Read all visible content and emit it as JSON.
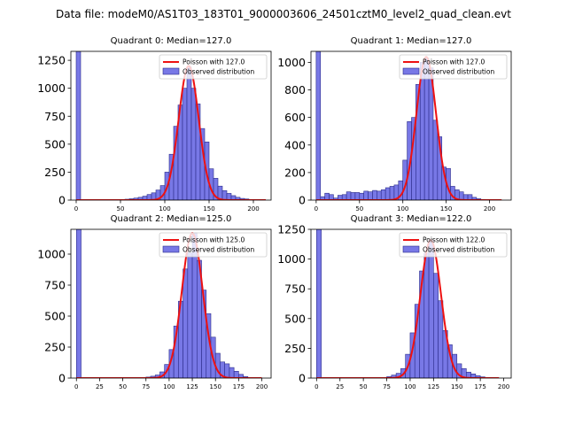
{
  "suptitle": "Data file: modeM0/AS1T03_183T01_9000003606_24501cztM0_level2_quad_clean.evt",
  "colors": {
    "bar_fill": "#7878e6",
    "bar_edge": "#2b2b8a",
    "fit_line": "#ee1111"
  },
  "chart_data": [
    {
      "type": "bar",
      "title": "Quadrant 0: Median=127.0",
      "median": 127.0,
      "xlim": [
        -6,
        220
      ],
      "ylim": [
        0,
        1330
      ],
      "xticks": [
        0,
        50,
        100,
        150,
        200
      ],
      "yticks": [
        0,
        250,
        500,
        750,
        1000,
        1250
      ],
      "bin_width": 5,
      "bins": [
        {
          "x": 0,
          "y": 1330
        },
        {
          "x": 55,
          "y": 8
        },
        {
          "x": 60,
          "y": 12
        },
        {
          "x": 65,
          "y": 18
        },
        {
          "x": 70,
          "y": 25
        },
        {
          "x": 75,
          "y": 35
        },
        {
          "x": 80,
          "y": 50
        },
        {
          "x": 85,
          "y": 65
        },
        {
          "x": 90,
          "y": 90
        },
        {
          "x": 95,
          "y": 130
        },
        {
          "x": 100,
          "y": 250
        },
        {
          "x": 105,
          "y": 410
        },
        {
          "x": 110,
          "y": 660
        },
        {
          "x": 115,
          "y": 850
        },
        {
          "x": 120,
          "y": 1000
        },
        {
          "x": 125,
          "y": 1190
        },
        {
          "x": 130,
          "y": 1000
        },
        {
          "x": 135,
          "y": 860
        },
        {
          "x": 140,
          "y": 640
        },
        {
          "x": 145,
          "y": 520
        },
        {
          "x": 150,
          "y": 280
        },
        {
          "x": 155,
          "y": 195
        },
        {
          "x": 160,
          "y": 125
        },
        {
          "x": 165,
          "y": 85
        },
        {
          "x": 170,
          "y": 60
        },
        {
          "x": 175,
          "y": 40
        },
        {
          "x": 180,
          "y": 25
        },
        {
          "x": 185,
          "y": 15
        },
        {
          "x": 190,
          "y": 10
        },
        {
          "x": 195,
          "y": 5
        },
        {
          "x": 200,
          "y": 3
        }
      ],
      "fit": {
        "mean": 127.0,
        "peak": 1200,
        "sigma": 11.3,
        "xmax": 214
      },
      "legend": {
        "line": "Poisson with 127.0",
        "bars": "Observed distribution"
      }
    },
    {
      "type": "bar",
      "title": "Quadrant 1: Median=127.0",
      "median": 127.0,
      "xlim": [
        -6,
        225
      ],
      "ylim": [
        0,
        1080
      ],
      "xticks": [
        0,
        50,
        100,
        150,
        200
      ],
      "yticks": [
        0,
        200,
        400,
        600,
        800,
        1000
      ],
      "bin_width": 5,
      "bins": [
        {
          "x": 0,
          "y": 1080
        },
        {
          "x": 5,
          "y": 25
        },
        {
          "x": 10,
          "y": 50
        },
        {
          "x": 15,
          "y": 40
        },
        {
          "x": 20,
          "y": 15
        },
        {
          "x": 25,
          "y": 35
        },
        {
          "x": 30,
          "y": 40
        },
        {
          "x": 35,
          "y": 60
        },
        {
          "x": 40,
          "y": 55
        },
        {
          "x": 45,
          "y": 55
        },
        {
          "x": 50,
          "y": 50
        },
        {
          "x": 55,
          "y": 65
        },
        {
          "x": 60,
          "y": 60
        },
        {
          "x": 65,
          "y": 70
        },
        {
          "x": 70,
          "y": 65
        },
        {
          "x": 75,
          "y": 75
        },
        {
          "x": 80,
          "y": 90
        },
        {
          "x": 85,
          "y": 100
        },
        {
          "x": 90,
          "y": 110
        },
        {
          "x": 95,
          "y": 140
        },
        {
          "x": 100,
          "y": 290
        },
        {
          "x": 105,
          "y": 570
        },
        {
          "x": 110,
          "y": 600
        },
        {
          "x": 115,
          "y": 840
        },
        {
          "x": 120,
          "y": 1000
        },
        {
          "x": 125,
          "y": 1030
        },
        {
          "x": 130,
          "y": 960
        },
        {
          "x": 135,
          "y": 580
        },
        {
          "x": 140,
          "y": 460
        },
        {
          "x": 145,
          "y": 240
        },
        {
          "x": 150,
          "y": 230
        },
        {
          "x": 155,
          "y": 100
        },
        {
          "x": 160,
          "y": 75
        },
        {
          "x": 165,
          "y": 60
        },
        {
          "x": 170,
          "y": 40
        },
        {
          "x": 175,
          "y": 40
        },
        {
          "x": 180,
          "y": 20
        },
        {
          "x": 185,
          "y": 10
        },
        {
          "x": 190,
          "y": 5
        }
      ],
      "fit": {
        "mean": 127.0,
        "peak": 1040,
        "sigma": 11.3,
        "xmax": 214
      },
      "legend": {
        "line": "Poisson with 127.0",
        "bars": "Observed distribution"
      }
    },
    {
      "type": "bar",
      "title": "Quadrant 2: Median=125.0",
      "median": 125.0,
      "xlim": [
        -6,
        210
      ],
      "ylim": [
        0,
        1200
      ],
      "xticks": [
        0,
        25,
        50,
        75,
        100,
        125,
        150,
        175,
        200
      ],
      "yticks": [
        0,
        250,
        500,
        750,
        1000
      ],
      "bin_width": 5,
      "bins": [
        {
          "x": 0,
          "y": 1200
        },
        {
          "x": 70,
          "y": 4
        },
        {
          "x": 75,
          "y": 8
        },
        {
          "x": 80,
          "y": 15
        },
        {
          "x": 85,
          "y": 25
        },
        {
          "x": 90,
          "y": 50
        },
        {
          "x": 95,
          "y": 110
        },
        {
          "x": 100,
          "y": 230
        },
        {
          "x": 105,
          "y": 420
        },
        {
          "x": 110,
          "y": 620
        },
        {
          "x": 115,
          "y": 880
        },
        {
          "x": 120,
          "y": 1010
        },
        {
          "x": 125,
          "y": 1170
        },
        {
          "x": 130,
          "y": 950
        },
        {
          "x": 135,
          "y": 710
        },
        {
          "x": 140,
          "y": 520
        },
        {
          "x": 145,
          "y": 330
        },
        {
          "x": 150,
          "y": 200
        },
        {
          "x": 155,
          "y": 130
        },
        {
          "x": 160,
          "y": 115
        },
        {
          "x": 165,
          "y": 85
        },
        {
          "x": 170,
          "y": 55
        },
        {
          "x": 175,
          "y": 30
        },
        {
          "x": 180,
          "y": 12
        },
        {
          "x": 185,
          "y": 5
        }
      ],
      "fit": {
        "mean": 125.0,
        "peak": 1170,
        "sigma": 11.2,
        "xmax": 200
      },
      "legend": {
        "line": "Poisson with 125.0",
        "bars": "Observed distribution"
      }
    },
    {
      "type": "bar",
      "title": "Quadrant 3: Median=122.0",
      "median": 122.0,
      "xlim": [
        -6,
        208
      ],
      "ylim": [
        0,
        1250
      ],
      "xticks": [
        0,
        25,
        50,
        75,
        100,
        125,
        150,
        175,
        200
      ],
      "yticks": [
        0,
        250,
        500,
        750,
        1000,
        1250
      ],
      "bin_width": 5,
      "bins": [
        {
          "x": 0,
          "y": 1250
        },
        {
          "x": 70,
          "y": 5
        },
        {
          "x": 75,
          "y": 12
        },
        {
          "x": 80,
          "y": 25
        },
        {
          "x": 85,
          "y": 40
        },
        {
          "x": 90,
          "y": 80
        },
        {
          "x": 95,
          "y": 200
        },
        {
          "x": 100,
          "y": 380
        },
        {
          "x": 105,
          "y": 620
        },
        {
          "x": 110,
          "y": 900
        },
        {
          "x": 115,
          "y": 1050
        },
        {
          "x": 120,
          "y": 1160
        },
        {
          "x": 125,
          "y": 880
        },
        {
          "x": 130,
          "y": 650
        },
        {
          "x": 135,
          "y": 400
        },
        {
          "x": 140,
          "y": 280
        },
        {
          "x": 145,
          "y": 200
        },
        {
          "x": 150,
          "y": 120
        },
        {
          "x": 155,
          "y": 80
        },
        {
          "x": 160,
          "y": 50
        },
        {
          "x": 165,
          "y": 35
        },
        {
          "x": 170,
          "y": 20
        },
        {
          "x": 175,
          "y": 10
        }
      ],
      "fit": {
        "mean": 122.0,
        "peak": 1160,
        "sigma": 11.0,
        "xmax": 195
      },
      "legend": {
        "line": "Poisson with 122.0",
        "bars": "Observed distribution"
      }
    }
  ]
}
